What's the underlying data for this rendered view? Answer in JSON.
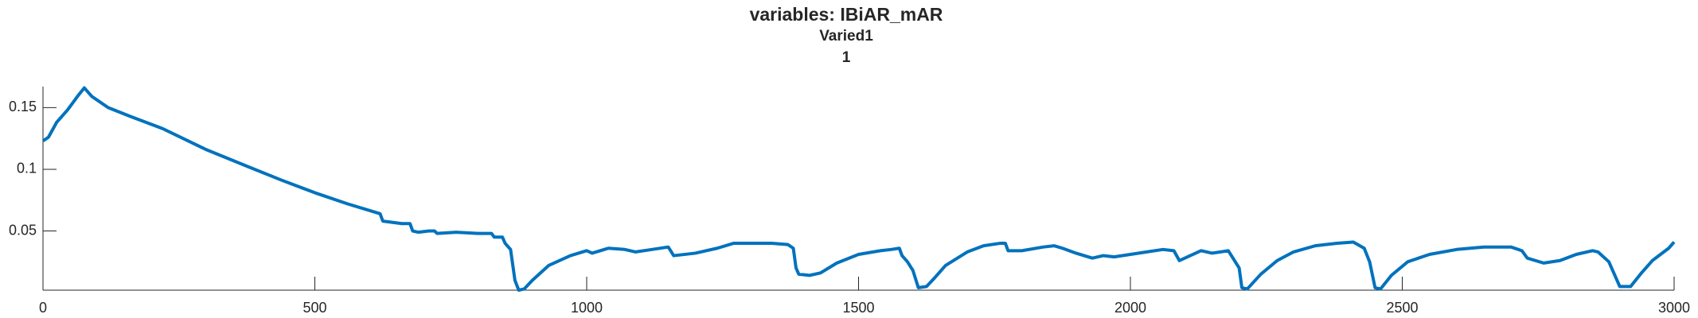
{
  "chart_data": {
    "type": "line",
    "title": "variables: IBiAR_mAR",
    "subtitles": [
      "Varied1",
      "1"
    ],
    "x": [
      0,
      10,
      25,
      45,
      65,
      76,
      90,
      120,
      160,
      220,
      300,
      378,
      440,
      500,
      560,
      620,
      625,
      660,
      675,
      680,
      690,
      710,
      720,
      725,
      760,
      800,
      825,
      830,
      845,
      850,
      860,
      868,
      875,
      885,
      900,
      930,
      970,
      1000,
      1010,
      1040,
      1070,
      1090,
      1120,
      1150,
      1160,
      1200,
      1240,
      1270,
      1300,
      1340,
      1370,
      1380,
      1385,
      1390,
      1410,
      1430,
      1460,
      1500,
      1540,
      1560,
      1575,
      1580,
      1590,
      1600,
      1610,
      1625,
      1640,
      1660,
      1700,
      1730,
      1760,
      1770,
      1775,
      1800,
      1840,
      1860,
      1875,
      1900,
      1930,
      1950,
      1970,
      2000,
      2030,
      2060,
      2080,
      2090,
      2110,
      2130,
      2150,
      2180,
      2190,
      2200,
      2205,
      2215,
      2240,
      2270,
      2300,
      2340,
      2380,
      2410,
      2430,
      2440,
      2450,
      2460,
      2480,
      2510,
      2550,
      2600,
      2650,
      2700,
      2720,
      2730,
      2760,
      2790,
      2820,
      2850,
      2860,
      2880,
      2890,
      2900,
      2920,
      2940,
      2960,
      2990,
      3000
    ],
    "series": [
      {
        "color": "#0072bd",
        "values": [
          0.123,
          0.126,
          0.138,
          0.148,
          0.16,
          0.166,
          0.159,
          0.15,
          0.143,
          0.133,
          0.116,
          0.102,
          0.091,
          0.081,
          0.072,
          0.064,
          0.058,
          0.056,
          0.056,
          0.05,
          0.049,
          0.05,
          0.05,
          0.048,
          0.049,
          0.048,
          0.048,
          0.045,
          0.045,
          0.04,
          0.035,
          0.01,
          0.002,
          0.003,
          0.01,
          0.022,
          0.03,
          0.034,
          0.032,
          0.036,
          0.035,
          0.033,
          0.035,
          0.037,
          0.03,
          0.032,
          0.036,
          0.04,
          0.04,
          0.04,
          0.039,
          0.036,
          0.02,
          0.015,
          0.014,
          0.016,
          0.024,
          0.031,
          0.034,
          0.035,
          0.036,
          0.03,
          0.025,
          0.018,
          0.004,
          0.005,
          0.012,
          0.022,
          0.033,
          0.038,
          0.04,
          0.04,
          0.034,
          0.034,
          0.037,
          0.038,
          0.036,
          0.032,
          0.028,
          0.03,
          0.029,
          0.031,
          0.033,
          0.035,
          0.034,
          0.026,
          0.03,
          0.034,
          0.032,
          0.034,
          0.027,
          0.02,
          0.004,
          0.003,
          0.015,
          0.026,
          0.033,
          0.038,
          0.04,
          0.041,
          0.036,
          0.025,
          0.004,
          0.003,
          0.014,
          0.025,
          0.031,
          0.035,
          0.037,
          0.037,
          0.034,
          0.028,
          0.024,
          0.026,
          0.031,
          0.034,
          0.033,
          0.025,
          0.015,
          0.005,
          0.005,
          0.016,
          0.026,
          0.036,
          0.041
        ]
      }
    ],
    "xlim": [
      0,
      3000
    ],
    "xticks": [
      0,
      500,
      1000,
      1500,
      2000,
      2500,
      3000
    ],
    "ylim": [
      0.002,
      0.167
    ],
    "yticks": [
      0.05,
      0.1,
      0.15
    ],
    "grid": false
  }
}
